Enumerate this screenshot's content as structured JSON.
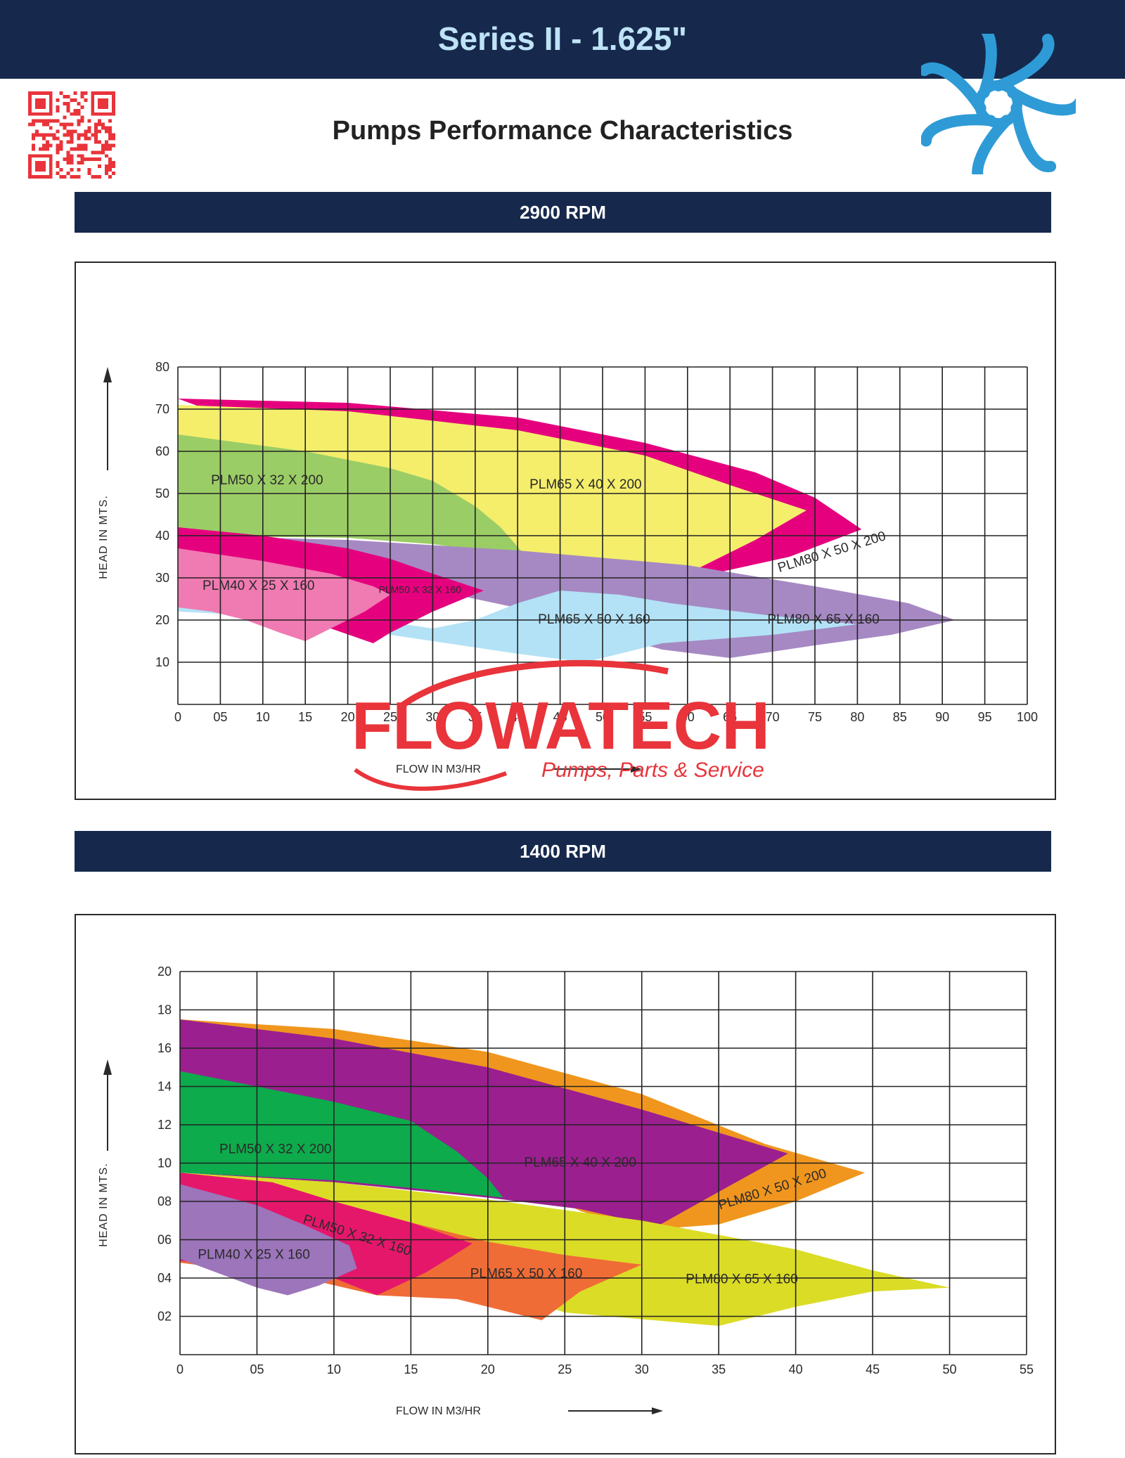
{
  "page": {
    "title": "Series II - 1.625\"",
    "subtitle": "Pumps Performance Characteristics",
    "watermark": {
      "brand": "FLOWATECH",
      "tagline": "Pumps, Parts & Service"
    },
    "colors": {
      "navy": "#16294d",
      "title_text": "#bfe3f6",
      "fan_blue": "#2e9bd6",
      "brand_red": "#e8343a"
    }
  },
  "chart_data": [
    {
      "type": "area",
      "section_label": "2900 RPM",
      "xlabel": "FLOW IN M3/HR",
      "ylabel": "HEAD IN MTS.",
      "xlim": [
        0,
        100
      ],
      "ylim": [
        0,
        80
      ],
      "x_ticks": [
        "0",
        "05",
        "10",
        "15",
        "20",
        "25",
        "30",
        "35",
        "40",
        "45",
        "50",
        "55",
        "60",
        "65",
        "70",
        "75",
        "80",
        "85",
        "90",
        "95",
        "100"
      ],
      "y_ticks": [
        "10",
        "20",
        "30",
        "40",
        "50",
        "60",
        "70",
        "80"
      ],
      "grid": true,
      "series": [
        {
          "name": "PLM80 X 50 X 200",
          "color": "#e5007e",
          "polygon": [
            [
              0,
              72.5
            ],
            [
              20,
              71.5
            ],
            [
              40,
              68
            ],
            [
              55,
              62
            ],
            [
              68,
              55
            ],
            [
              75,
              49
            ],
            [
              80.5,
              41.5
            ],
            [
              72,
              35
            ],
            [
              63,
              31
            ],
            [
              62,
              29.5
            ],
            [
              57,
              30
            ]
          ],
          "label_at": [
            77,
            36
          ],
          "label_rotate": -17
        },
        {
          "name": "PLM65 X 40 X 200",
          "color": "#f5ee6b",
          "polygon": [
            [
              0,
              71
            ],
            [
              20,
              69.5
            ],
            [
              40,
              65
            ],
            [
              55,
              59
            ],
            [
              65,
              52
            ],
            [
              74,
              46
            ],
            [
              68,
              39
            ],
            [
              60,
              31
            ],
            [
              50,
              33
            ],
            [
              40,
              36
            ],
            [
              30,
              38
            ],
            [
              20,
              39.5
            ],
            [
              0,
              40
            ]
          ],
          "label_at": [
            48,
            52
          ],
          "label_rotate": 0
        },
        {
          "name": "PLM50 X 32 X 200",
          "color": "#9bcd66",
          "polygon": [
            [
              0,
              64
            ],
            [
              15,
              60
            ],
            [
              25,
              56
            ],
            [
              30,
              53
            ],
            [
              35,
              47
            ],
            [
              38,
              42
            ],
            [
              41,
              35
            ],
            [
              30,
              38
            ],
            [
              20,
              39.5
            ],
            [
              0,
              40
            ]
          ],
          "label_at": [
            10.5,
            53
          ],
          "label_rotate": 0
        },
        {
          "name": "PLM80 X 65 X 160",
          "color": "#a689c3",
          "polygon": [
            [
              0,
              40
            ],
            [
              20,
              39
            ],
            [
              40,
              36.5
            ],
            [
              60,
              33
            ],
            [
              75,
              28
            ],
            [
              86,
              24
            ],
            [
              91.5,
              20
            ],
            [
              84,
              16.5
            ],
            [
              75,
              14
            ],
            [
              65,
              11
            ],
            [
              57,
              13
            ],
            [
              50,
              17
            ],
            [
              42,
              22
            ]
          ],
          "label_at": [
            76,
            20
          ],
          "label_rotate": 0
        },
        {
          "name": "PLM65 X 50 X 160",
          "color": "#b3e2f6",
          "polygon": [
            [
              0,
              24
            ],
            [
              15,
              22
            ],
            [
              25,
              19.5
            ],
            [
              30,
              18
            ],
            [
              35,
              20
            ],
            [
              40,
              24
            ],
            [
              45,
              27
            ],
            [
              52,
              26
            ],
            [
              58,
              24
            ],
            [
              62,
              23
            ],
            [
              70,
              21
            ],
            [
              80,
              19
            ],
            [
              70,
              16.5
            ],
            [
              57,
              14.5
            ],
            [
              48,
              10
            ],
            [
              40,
              12
            ],
            [
              30,
              15
            ],
            [
              20,
              18
            ],
            [
              10,
              21
            ],
            [
              0,
              22
            ]
          ],
          "label_at": [
            49,
            20
          ],
          "label_rotate": 0
        },
        {
          "name": "PLM50 X 32 X 160",
          "color": "#e5007e",
          "polygon": [
            [
              0,
              42
            ],
            [
              10,
              40
            ],
            [
              20,
              37
            ],
            [
              25,
              34.5
            ],
            [
              30,
              31
            ],
            [
              36,
              27
            ],
            [
              30,
              22
            ],
            [
              25,
              17
            ],
            [
              23,
              14.5
            ],
            [
              18,
              18
            ],
            [
              10,
              21
            ],
            [
              0,
              24
            ]
          ],
          "label_at": [
            28.5,
            27
          ],
          "label_rotate": 0,
          "label_small": true
        },
        {
          "name": "PLM40 X 25 X 160",
          "color": "#f07ab2",
          "polygon": [
            [
              0,
              37
            ],
            [
              10,
              34
            ],
            [
              18,
              31
            ],
            [
              23,
              28
            ],
            [
              25,
              26
            ],
            [
              22,
              22
            ],
            [
              18,
              18
            ],
            [
              15,
              15
            ],
            [
              12,
              17
            ],
            [
              8,
              20
            ],
            [
              4,
              22
            ],
            [
              0,
              23
            ]
          ],
          "label_at": [
            9.5,
            28
          ],
          "label_rotate": 0
        }
      ]
    },
    {
      "type": "area",
      "section_label": "1400 RPM",
      "xlabel": "FLOW IN M3/HR",
      "ylabel": "HEAD IN MTS.",
      "xlim": [
        0,
        55
      ],
      "ylim": [
        0,
        20
      ],
      "x_ticks": [
        "0",
        "05",
        "10",
        "15",
        "20",
        "25",
        "30",
        "35",
        "40",
        "45",
        "50",
        "55"
      ],
      "y_ticks": [
        "02",
        "04",
        "06",
        "08",
        "10",
        "12",
        "14",
        "16",
        "18",
        "20"
      ],
      "grid": true,
      "series": [
        {
          "name": "PLM80 X 50 X 200",
          "color": "#f0961e",
          "polygon": [
            [
              0,
              17.5
            ],
            [
              10,
              17
            ],
            [
              20,
              15.8
            ],
            [
              30,
              13.6
            ],
            [
              38,
              11
            ],
            [
              44.5,
              9.5
            ],
            [
              40,
              8
            ],
            [
              35,
              6.8
            ],
            [
              30,
              6.5
            ],
            [
              26,
              7.5
            ]
          ],
          "label_at": [
            38.5,
            8.6
          ],
          "label_rotate": -17
        },
        {
          "name": "PLM65 X 40 X 200",
          "color": "#9b1f8f",
          "polygon": [
            [
              0,
              17.5
            ],
            [
              10,
              16.5
            ],
            [
              20,
              15
            ],
            [
              30,
              12.8
            ],
            [
              39.5,
              10.5
            ],
            [
              35,
              8.5
            ],
            [
              31,
              6.7
            ],
            [
              26,
              7.6
            ],
            [
              20,
              8.2
            ],
            [
              10,
              9
            ],
            [
              0,
              9.5
            ]
          ],
          "label_at": [
            26,
            10
          ],
          "label_rotate": 0
        },
        {
          "name": "PLM50 X 32 X 200",
          "color": "#0dab4c",
          "polygon": [
            [
              0,
              14.8
            ],
            [
              10,
              13.2
            ],
            [
              15,
              12.2
            ],
            [
              18,
              10.6
            ],
            [
              20,
              9.2
            ],
            [
              21,
              8.2
            ],
            [
              15,
              8.7
            ],
            [
              10,
              9.1
            ],
            [
              0,
              9.5
            ]
          ],
          "label_at": [
            6.2,
            10.7
          ],
          "label_rotate": 0
        },
        {
          "name": "PLM80 X 65 X 160",
          "color": "#dbdc26",
          "polygon": [
            [
              0,
              9.5
            ],
            [
              10,
              9
            ],
            [
              20,
              8.1
            ],
            [
              30,
              7
            ],
            [
              40,
              5.5
            ],
            [
              45,
              4.4
            ],
            [
              50,
              3.5
            ],
            [
              45,
              3.3
            ],
            [
              40,
              2.5
            ],
            [
              35,
              1.5
            ],
            [
              25,
              2.2
            ],
            [
              20,
              3.5
            ],
            [
              10,
              5.5
            ],
            [
              0,
              6
            ]
          ],
          "label_at": [
            36.5,
            3.9
          ],
          "label_rotate": 0
        },
        {
          "name": "PLM65 X 50 X 160",
          "color": "#f06c36",
          "polygon": [
            [
              0,
              9.3
            ],
            [
              10,
              7.8
            ],
            [
              15,
              6.9
            ],
            [
              20,
              5.9
            ],
            [
              25,
              5.2
            ],
            [
              30,
              4.7
            ],
            [
              26,
              3.3
            ],
            [
              23.5,
              1.8
            ],
            [
              18,
              2.9
            ],
            [
              12.8,
              3.1
            ],
            [
              8,
              4
            ],
            [
              0,
              4.8
            ]
          ],
          "label_at": [
            22.5,
            4.2
          ],
          "label_rotate": 0
        },
        {
          "name": "PLM50 X 32 X 160",
          "color": "#e5176b",
          "polygon": [
            [
              0,
              9.5
            ],
            [
              6,
              9
            ],
            [
              10,
              8
            ],
            [
              15,
              6.9
            ],
            [
              19,
              5.8
            ],
            [
              16,
              4.3
            ],
            [
              12.8,
              3.1
            ],
            [
              10,
              4
            ],
            [
              5,
              4.5
            ],
            [
              0,
              4.9
            ]
          ],
          "label_at": [
            11.5,
            6.2
          ],
          "label_rotate": 17
        },
        {
          "name": "PLM40 X 25 X 160",
          "color": "#9c75bb",
          "polygon": [
            [
              0,
              8.9
            ],
            [
              5,
              7.8
            ],
            [
              8,
              6.8
            ],
            [
              11,
              5.7
            ],
            [
              11.5,
              4.5
            ],
            [
              9,
              3.6
            ],
            [
              7,
              3.1
            ],
            [
              5,
              3.5
            ],
            [
              0,
              5
            ]
          ],
          "label_at": [
            4.8,
            5.2
          ],
          "label_rotate": 0
        }
      ]
    }
  ]
}
